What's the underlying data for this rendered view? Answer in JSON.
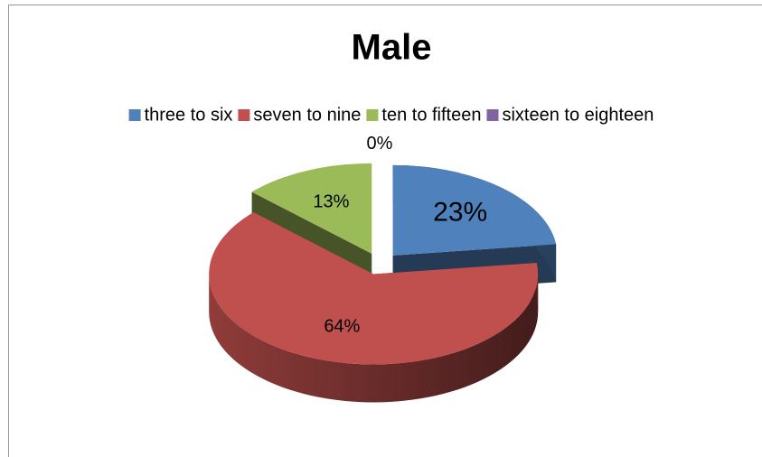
{
  "chart_data": {
    "type": "pie",
    "title": "Male",
    "categories": [
      "three to six",
      "seven to nine",
      "ten to fifteen",
      "sixteen to eighteen"
    ],
    "values": [
      23,
      64,
      13,
      0
    ],
    "value_labels": [
      "23%",
      "64%",
      "13%",
      "0%"
    ],
    "colors": [
      "#4f81bd",
      "#c0504d",
      "#9bbb59",
      "#8064a2"
    ],
    "legend": "top",
    "three_d": true,
    "exploded": true
  }
}
